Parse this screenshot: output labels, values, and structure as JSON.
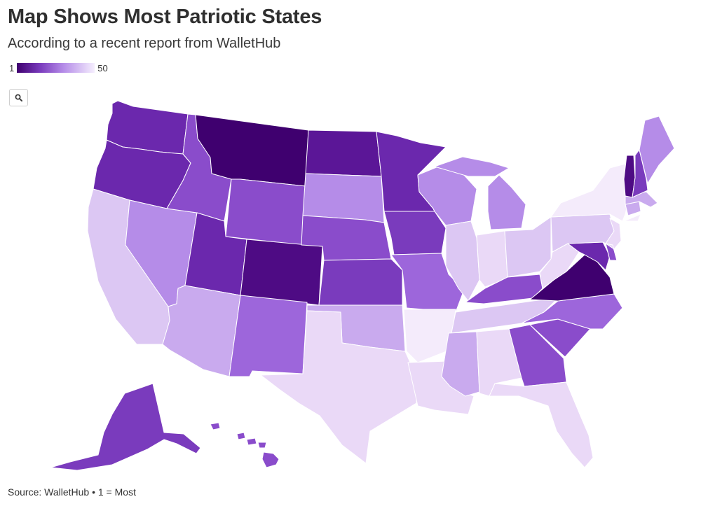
{
  "header": {
    "title": "Map Shows Most Patriotic States",
    "subtitle": "According to a recent report from WalletHub"
  },
  "legend": {
    "min_label": "1",
    "max_label": "50",
    "color_low": "#3f006f",
    "color_high": "#f5eefe"
  },
  "controls": {
    "zoom_icon": "search-icon"
  },
  "footer": {
    "source": "Source: WalletHub • 1 = Most"
  },
  "palette": {
    "r1": "#3f006f",
    "r2": "#4e0b84",
    "r3": "#5b1697",
    "r4": "#6b28ad",
    "r5": "#7a3bbd",
    "r6": "#8a4ccb",
    "r7": "#9d66db",
    "r8": "#b58ce8",
    "r9": "#c9aaee",
    "r10": "#dcc7f3",
    "r11": "#ead9f7",
    "r12": "#f4ebfb"
  },
  "states": [
    {
      "id": "WA",
      "shade": "r4"
    },
    {
      "id": "OR",
      "shade": "r4"
    },
    {
      "id": "CA",
      "shade": "r10"
    },
    {
      "id": "NV",
      "shade": "r8"
    },
    {
      "id": "ID",
      "shade": "r6"
    },
    {
      "id": "MT",
      "shade": "r1"
    },
    {
      "id": "WY",
      "shade": "r6"
    },
    {
      "id": "UT",
      "shade": "r4"
    },
    {
      "id": "AZ",
      "shade": "r9"
    },
    {
      "id": "CO",
      "shade": "r2"
    },
    {
      "id": "NM",
      "shade": "r7"
    },
    {
      "id": "ND",
      "shade": "r3"
    },
    {
      "id": "SD",
      "shade": "r8"
    },
    {
      "id": "NE",
      "shade": "r6"
    },
    {
      "id": "KS",
      "shade": "r5"
    },
    {
      "id": "OK",
      "shade": "r9"
    },
    {
      "id": "TX",
      "shade": "r11"
    },
    {
      "id": "MN",
      "shade": "r4"
    },
    {
      "id": "IA",
      "shade": "r5"
    },
    {
      "id": "MO",
      "shade": "r7"
    },
    {
      "id": "AR",
      "shade": "r12"
    },
    {
      "id": "LA",
      "shade": "r11"
    },
    {
      "id": "WI",
      "shade": "r8"
    },
    {
      "id": "IL",
      "shade": "r10"
    },
    {
      "id": "MI",
      "shade": "r8"
    },
    {
      "id": "IN",
      "shade": "r11"
    },
    {
      "id": "OH",
      "shade": "r10"
    },
    {
      "id": "KY",
      "shade": "r6"
    },
    {
      "id": "TN",
      "shade": "r10"
    },
    {
      "id": "MS",
      "shade": "r9"
    },
    {
      "id": "AL",
      "shade": "r11"
    },
    {
      "id": "GA",
      "shade": "r6"
    },
    {
      "id": "FL",
      "shade": "r11"
    },
    {
      "id": "SC",
      "shade": "r6"
    },
    {
      "id": "NC",
      "shade": "r7"
    },
    {
      "id": "VA",
      "shade": "r1"
    },
    {
      "id": "WV",
      "shade": "r11"
    },
    {
      "id": "MD",
      "shade": "r4"
    },
    {
      "id": "DE",
      "shade": "r6"
    },
    {
      "id": "PA",
      "shade": "r10"
    },
    {
      "id": "NJ",
      "shade": "r11"
    },
    {
      "id": "NY",
      "shade": "r12"
    },
    {
      "id": "CT",
      "shade": "r9"
    },
    {
      "id": "MA",
      "shade": "r9"
    },
    {
      "id": "VT",
      "shade": "r2"
    },
    {
      "id": "NH",
      "shade": "r5"
    },
    {
      "id": "ME",
      "shade": "r8"
    },
    {
      "id": "AK",
      "shade": "r5"
    },
    {
      "id": "HI",
      "shade": "r6"
    }
  ]
}
